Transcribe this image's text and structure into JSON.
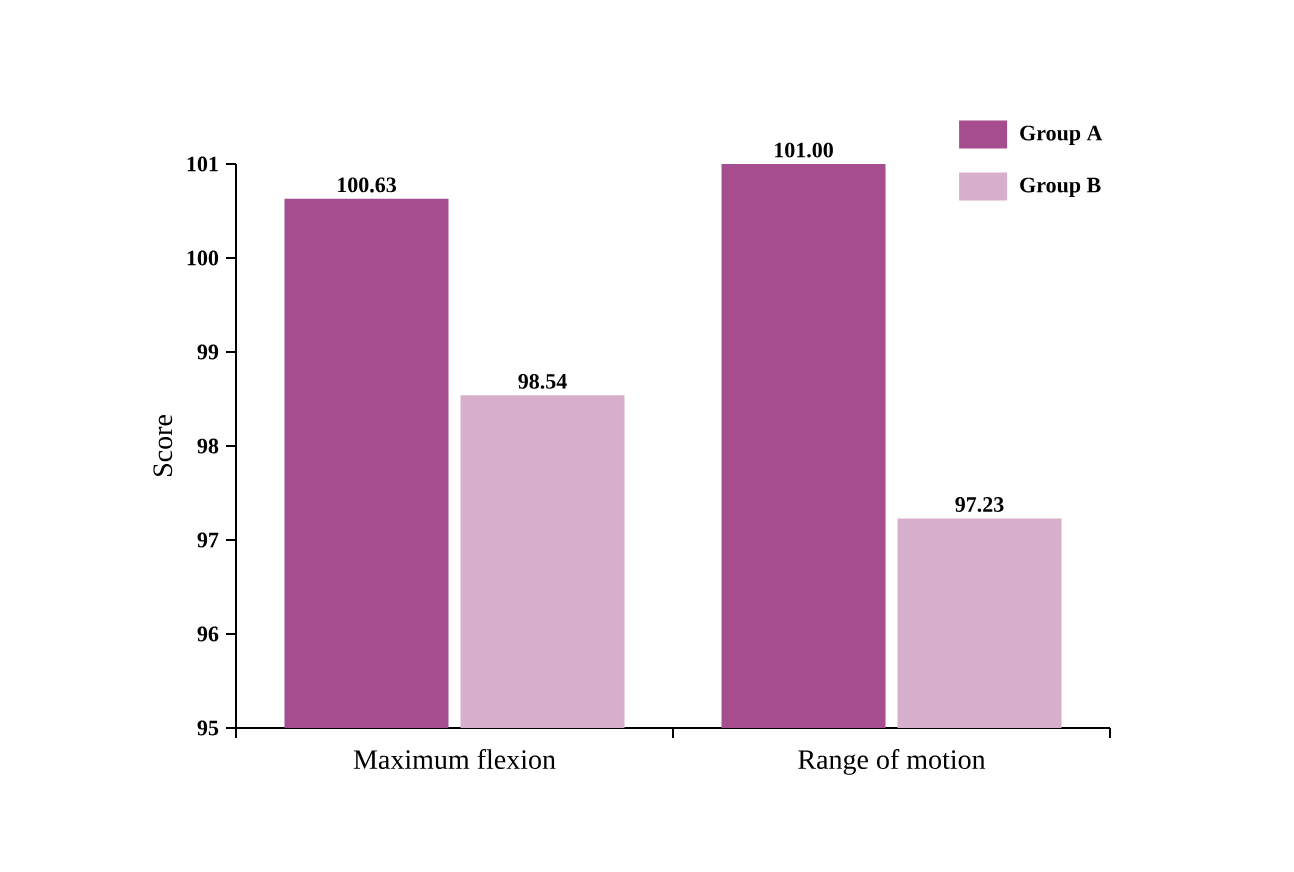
{
  "chart_data": {
    "type": "bar",
    "ylabel": "Score",
    "categories": [
      "Maximum flexion",
      "Range of motion"
    ],
    "series": [
      {
        "name": "Group A",
        "color": "#a64d8f",
        "values": [
          100.63,
          101.0
        ],
        "value_labels": [
          "100.63",
          "101.00"
        ]
      },
      {
        "name": "Group B",
        "color": "#d7aecb",
        "values": [
          98.54,
          97.23
        ],
        "value_labels": [
          "98.54",
          "97.23"
        ]
      }
    ],
    "ylim": [
      95,
      101
    ],
    "yticks": [
      95,
      96,
      97,
      98,
      99,
      100,
      101
    ],
    "grid": false,
    "legend": "top right"
  }
}
